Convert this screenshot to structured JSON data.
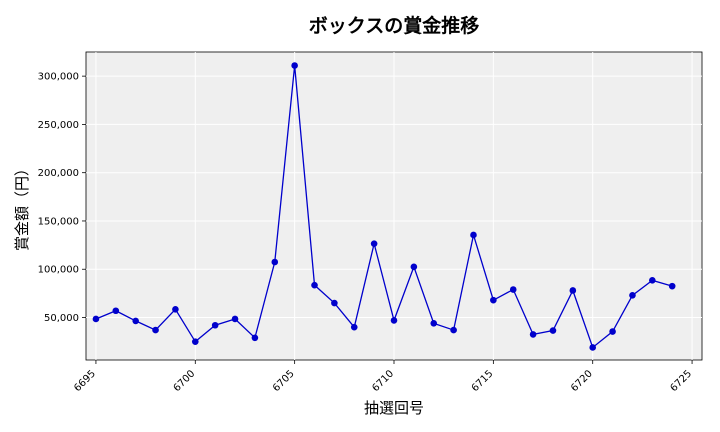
{
  "chart_data": {
    "type": "line",
    "title": "ボックスの賞金推移",
    "xlabel": "抽選回号",
    "ylabel": "賞金額（円）",
    "x": [
      6695,
      6696,
      6697,
      6698,
      6699,
      6700,
      6701,
      6702,
      6703,
      6704,
      6705,
      6706,
      6707,
      6708,
      6709,
      6710,
      6711,
      6712,
      6713,
      6714,
      6715,
      6716,
      6717,
      6718,
      6719,
      6720,
      6721,
      6722,
      6723,
      6724
    ],
    "series": [
      {
        "values": [
          48500,
          57000,
          46500,
          37000,
          58500,
          25000,
          42000,
          48500,
          29000,
          107500,
          311000,
          83500,
          65000,
          40000,
          126500,
          47000,
          102500,
          44000,
          37000,
          135500,
          68000,
          79000,
          32500,
          36500,
          78000,
          19000,
          35500,
          73000,
          88500,
          82500
        ],
        "color": "#0000cc"
      }
    ],
    "xlim": [
      6694.5,
      6725.5
    ],
    "ylim": [
      6000,
      325000
    ],
    "xticks": [
      6695,
      6700,
      6705,
      6710,
      6715,
      6720,
      6725
    ],
    "yticks": [
      50000,
      100000,
      150000,
      200000,
      250000,
      300000
    ],
    "ytick_labels": [
      "50,000",
      "100,000",
      "150,000",
      "200,000",
      "250,000",
      "300,000"
    ],
    "grid": true,
    "background": "#efefef"
  }
}
